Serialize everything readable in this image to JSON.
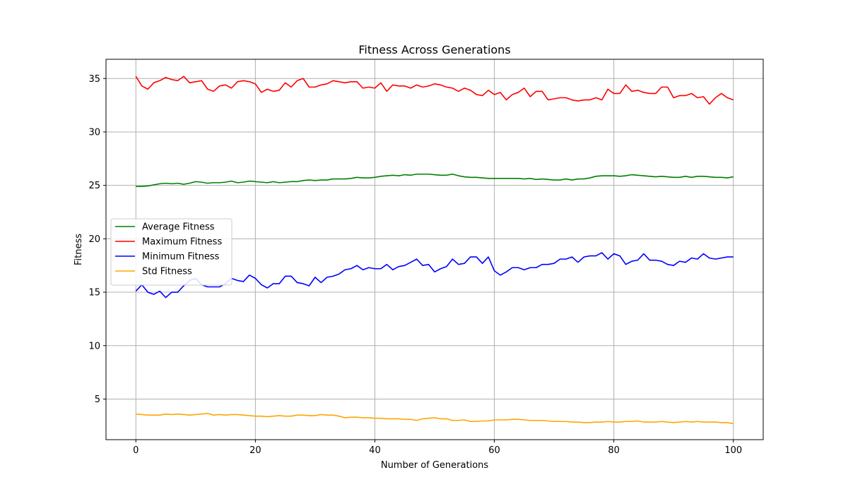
{
  "chart_data": {
    "type": "line",
    "title": "Fitness Across Generations",
    "xlabel": "Number of Generations",
    "ylabel": "Fitness",
    "xlim": [
      -5,
      105
    ],
    "ylim": [
      1.2,
      36.8
    ],
    "xticks": [
      0,
      20,
      40,
      60,
      80,
      100
    ],
    "yticks": [
      5,
      10,
      15,
      20,
      25,
      30,
      35
    ],
    "grid": true,
    "legend_position": "center-left",
    "x": [
      0,
      1,
      2,
      3,
      4,
      5,
      6,
      7,
      8,
      9,
      10,
      11,
      12,
      13,
      14,
      15,
      16,
      17,
      18,
      19,
      20,
      21,
      22,
      23,
      24,
      25,
      26,
      27,
      28,
      29,
      30,
      31,
      32,
      33,
      34,
      35,
      36,
      37,
      38,
      39,
      40,
      41,
      42,
      43,
      44,
      45,
      46,
      47,
      48,
      49,
      50,
      51,
      52,
      53,
      54,
      55,
      56,
      57,
      58,
      59,
      60,
      61,
      62,
      63,
      64,
      65,
      66,
      67,
      68,
      69,
      70,
      71,
      72,
      73,
      74,
      75,
      76,
      77,
      78,
      79,
      80,
      81,
      82,
      83,
      84,
      85,
      86,
      87,
      88,
      89,
      90,
      91,
      92,
      93,
      94,
      95,
      96,
      97,
      98,
      99,
      100
    ],
    "series": [
      {
        "name": "Average Fitness",
        "color": "#008000",
        "values": [
          24.9,
          24.9,
          24.95,
          25.05,
          25.15,
          25.2,
          25.15,
          25.2,
          25.1,
          25.2,
          25.35,
          25.3,
          25.2,
          25.25,
          25.25,
          25.3,
          25.4,
          25.25,
          25.3,
          25.4,
          25.35,
          25.3,
          25.25,
          25.35,
          25.25,
          25.3,
          25.35,
          25.35,
          25.45,
          25.5,
          25.45,
          25.5,
          25.5,
          25.6,
          25.6,
          25.6,
          25.65,
          25.75,
          25.7,
          25.7,
          25.75,
          25.85,
          25.9,
          25.95,
          25.9,
          26.0,
          25.95,
          26.05,
          26.05,
          26.05,
          26.0,
          25.95,
          25.95,
          26.05,
          25.9,
          25.8,
          25.75,
          25.75,
          25.7,
          25.65,
          25.65,
          25.65,
          25.65,
          25.65,
          25.65,
          25.6,
          25.65,
          25.55,
          25.6,
          25.55,
          25.5,
          25.5,
          25.6,
          25.5,
          25.6,
          25.6,
          25.7,
          25.85,
          25.9,
          25.9,
          25.9,
          25.85,
          25.9,
          26.0,
          25.95,
          25.9,
          25.85,
          25.8,
          25.85,
          25.8,
          25.75,
          25.75,
          25.85,
          25.75,
          25.85,
          25.85,
          25.8,
          25.75,
          25.75,
          25.7,
          25.8
        ]
      },
      {
        "name": "Maximum Fitness",
        "color": "#ff0000",
        "values": [
          35.2,
          34.3,
          34.0,
          34.6,
          34.8,
          35.1,
          34.9,
          34.8,
          35.2,
          34.6,
          34.7,
          34.8,
          34.0,
          33.8,
          34.3,
          34.4,
          34.1,
          34.7,
          34.8,
          34.7,
          34.5,
          33.7,
          34.0,
          33.8,
          33.9,
          34.6,
          34.2,
          34.8,
          35.0,
          34.2,
          34.2,
          34.4,
          34.5,
          34.8,
          34.7,
          34.6,
          34.7,
          34.7,
          34.1,
          34.2,
          34.1,
          34.6,
          33.8,
          34.4,
          34.3,
          34.3,
          34.1,
          34.4,
          34.2,
          34.3,
          34.5,
          34.4,
          34.2,
          34.1,
          33.8,
          34.1,
          33.9,
          33.5,
          33.4,
          33.9,
          33.5,
          33.7,
          33.0,
          33.5,
          33.7,
          34.1,
          33.3,
          33.8,
          33.8,
          33.0,
          33.1,
          33.2,
          33.2,
          33.0,
          32.9,
          33.0,
          33.0,
          33.2,
          33.0,
          34.0,
          33.6,
          33.6,
          34.4,
          33.8,
          33.9,
          33.7,
          33.6,
          33.6,
          34.2,
          34.2,
          33.2,
          33.4,
          33.4,
          33.6,
          33.2,
          33.3,
          32.6,
          33.2,
          33.6,
          33.2,
          33.0
        ]
      },
      {
        "name": "Minimum Fitness",
        "color": "#0000ff",
        "values": [
          15.1,
          15.7,
          15.0,
          14.8,
          15.1,
          14.5,
          15.0,
          15.0,
          15.6,
          16.1,
          16.3,
          15.7,
          15.5,
          15.5,
          15.5,
          15.8,
          16.3,
          16.1,
          16.0,
          16.6,
          16.3,
          15.7,
          15.4,
          15.8,
          15.8,
          16.5,
          16.5,
          15.9,
          15.8,
          15.6,
          16.4,
          15.9,
          16.4,
          16.5,
          16.7,
          17.1,
          17.2,
          17.5,
          17.1,
          17.3,
          17.2,
          17.2,
          17.6,
          17.1,
          17.4,
          17.5,
          17.8,
          18.1,
          17.5,
          17.6,
          16.9,
          17.2,
          17.4,
          18.1,
          17.6,
          17.7,
          18.3,
          18.3,
          17.7,
          18.3,
          17.0,
          16.6,
          16.9,
          17.3,
          17.3,
          17.1,
          17.3,
          17.3,
          17.6,
          17.6,
          17.7,
          18.1,
          18.1,
          18.3,
          17.8,
          18.3,
          18.4,
          18.4,
          18.7,
          18.1,
          18.6,
          18.4,
          17.6,
          17.9,
          18.0,
          18.6,
          18.0,
          18.0,
          17.9,
          17.6,
          17.5,
          17.9,
          17.8,
          18.2,
          18.1,
          18.6,
          18.2,
          18.1,
          18.2,
          18.3,
          18.3
        ]
      },
      {
        "name": "Std Fitness",
        "color": "#ffa500",
        "values": [
          3.6,
          3.55,
          3.5,
          3.5,
          3.5,
          3.6,
          3.55,
          3.6,
          3.55,
          3.5,
          3.55,
          3.6,
          3.65,
          3.5,
          3.55,
          3.5,
          3.55,
          3.55,
          3.5,
          3.45,
          3.4,
          3.4,
          3.35,
          3.4,
          3.45,
          3.4,
          3.4,
          3.5,
          3.5,
          3.45,
          3.45,
          3.55,
          3.5,
          3.5,
          3.4,
          3.25,
          3.3,
          3.3,
          3.25,
          3.25,
          3.2,
          3.2,
          3.15,
          3.15,
          3.15,
          3.1,
          3.1,
          3.0,
          3.15,
          3.2,
          3.25,
          3.15,
          3.15,
          3.0,
          3.0,
          3.05,
          2.9,
          2.9,
          2.95,
          2.95,
          3.05,
          3.05,
          3.05,
          3.1,
          3.1,
          3.05,
          3.0,
          3.0,
          3.0,
          2.95,
          2.9,
          2.9,
          2.9,
          2.85,
          2.85,
          2.8,
          2.8,
          2.85,
          2.85,
          2.9,
          2.85,
          2.85,
          2.9,
          2.9,
          2.95,
          2.85,
          2.85,
          2.85,
          2.9,
          2.85,
          2.8,
          2.85,
          2.9,
          2.85,
          2.9,
          2.85,
          2.85,
          2.85,
          2.8,
          2.8,
          2.7
        ]
      }
    ]
  }
}
